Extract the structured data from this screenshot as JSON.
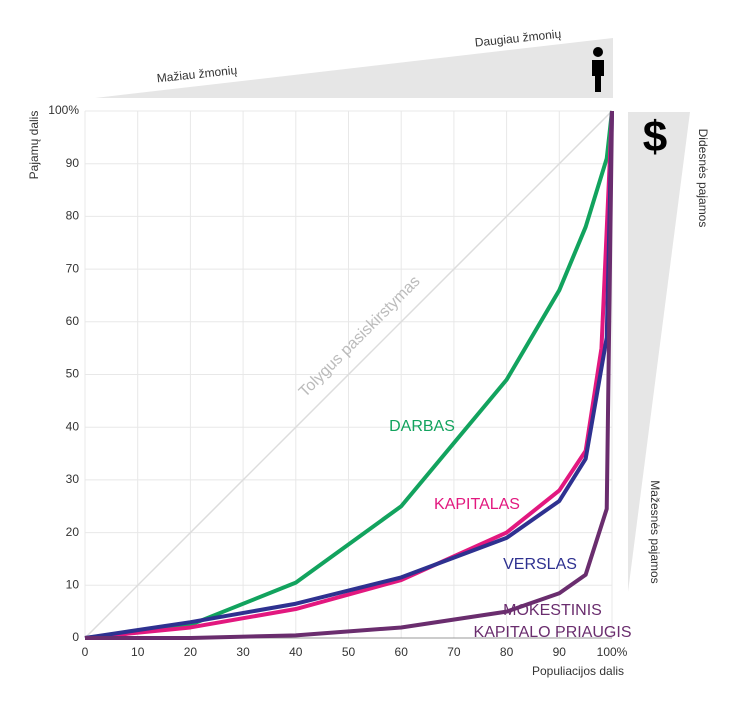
{
  "chart_data": {
    "type": "line",
    "xlabel": "Populiacijos dalis",
    "ylabel": "Pajamų dalis",
    "annotations": [
      "Mažiau žmonių",
      "Daugiau žmonių",
      "$",
      "Didesnės pajamos",
      "Mažesnės pajamos"
    ],
    "xlim": [
      0,
      100
    ],
    "ylim": [
      0,
      100
    ],
    "xticks": [
      0,
      10,
      20,
      30,
      40,
      50,
      60,
      70,
      80,
      90,
      {
        "value": 100,
        "label": "100%"
      }
    ],
    "yticks": [
      0,
      10,
      20,
      30,
      40,
      50,
      60,
      70,
      80,
      90,
      {
        "value": 100,
        "label": "100%"
      }
    ],
    "grid": true,
    "series": [
      {
        "name": "Tolygus pasiskirstymas",
        "color": "#dddddd",
        "x": [
          0,
          100
        ],
        "values": [
          0,
          100
        ]
      },
      {
        "name": "DARBAS",
        "color": "#12a35e",
        "x": [
          0,
          20,
          40,
          60,
          80,
          90,
          95,
          99,
          100
        ],
        "values": [
          0,
          2.5,
          10.5,
          25,
          49,
          66,
          78,
          91,
          100
        ]
      },
      {
        "name": "KAPITALAS",
        "color": "#e2187f",
        "x": [
          0,
          20,
          40,
          60,
          80,
          90,
          95,
          98,
          100
        ],
        "values": [
          0,
          2,
          5.5,
          11,
          20,
          28,
          35.5,
          55,
          100
        ]
      },
      {
        "name": "VERSLAS",
        "color": "#2e3190",
        "x": [
          0,
          20,
          40,
          60,
          80,
          90,
          95,
          99,
          100
        ],
        "values": [
          0,
          3,
          6.5,
          11.5,
          19,
          26,
          34,
          57,
          100
        ]
      },
      {
        "name": "MOKESTINIS KAPITALO PRIAUGIS",
        "color": "#6a2d6e",
        "x": [
          0,
          20,
          40,
          60,
          80,
          90,
          95,
          99,
          100
        ],
        "values": [
          0,
          0,
          0.5,
          2,
          5,
          8.5,
          12,
          24.5,
          100
        ]
      }
    ]
  }
}
